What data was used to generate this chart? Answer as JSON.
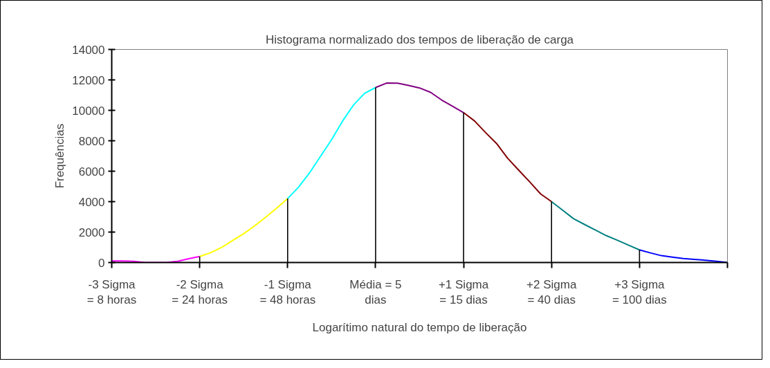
{
  "chart_data": {
    "type": "line",
    "title": "Histograma normalizado dos tempos de liberação de carga",
    "xlabel": "Logarítimo natural do tempo de liberação",
    "ylabel": "Frequências",
    "categories": [
      "-3 Sigma\n= 8 horas",
      null,
      null,
      null,
      null,
      null,
      null,
      null,
      "-2 Sigma\n= 24 horas",
      null,
      null,
      null,
      null,
      null,
      null,
      null,
      "-1 Sigma\n= 48 horas",
      null,
      null,
      null,
      null,
      null,
      null,
      null,
      "Média = 5\ndias",
      null,
      null,
      null,
      null,
      null,
      null,
      null,
      "+1 Sigma\n= 15 dias",
      null,
      null,
      null,
      null,
      null,
      null,
      null,
      "+2 Sigma\n= 40 dias",
      null,
      null,
      null,
      null,
      null,
      null,
      null,
      "+3 Sigma\n= 100 dias",
      null,
      null,
      null,
      null,
      null,
      null,
      null,
      null
    ],
    "ylim": [
      0,
      14000
    ],
    "yticks": [
      0,
      2000,
      4000,
      6000,
      8000,
      10000,
      12000,
      14000
    ],
    "series": [
      {
        "color": "#ff00ff",
        "values": [
          100,
          100,
          80,
          0,
          0,
          0,
          80,
          250,
          400,
          null,
          null,
          null,
          null,
          null,
          null,
          null,
          null,
          null,
          null,
          null,
          null,
          null,
          null,
          null,
          null,
          null,
          null,
          null,
          null,
          null,
          null,
          null,
          null,
          null,
          null,
          null,
          null,
          null,
          null,
          null,
          null,
          null,
          null,
          null,
          null,
          null,
          null,
          null,
          null,
          null,
          null,
          null,
          null,
          null,
          null,
          null,
          null
        ]
      },
      {
        "color": "#ffff00",
        "values": [
          null,
          null,
          null,
          null,
          null,
          null,
          null,
          null,
          400,
          640,
          990,
          1450,
          1890,
          2410,
          2980,
          3570,
          4200,
          null,
          null,
          null,
          null,
          null,
          null,
          null,
          null,
          null,
          null,
          null,
          null,
          null,
          null,
          null,
          null,
          null,
          null,
          null,
          null,
          null,
          null,
          null,
          null,
          null,
          null,
          null,
          null,
          null,
          null,
          null,
          null,
          null,
          null,
          null,
          null,
          null,
          null,
          null,
          null
        ]
      },
      {
        "color": "#00ffff",
        "values": [
          null,
          null,
          null,
          null,
          null,
          null,
          null,
          null,
          null,
          null,
          null,
          null,
          null,
          null,
          null,
          null,
          4200,
          4960,
          5900,
          6990,
          8080,
          9300,
          10360,
          11120,
          11500,
          null,
          null,
          null,
          null,
          null,
          null,
          null,
          null,
          null,
          null,
          null,
          null,
          null,
          null,
          null,
          null,
          null,
          null,
          null,
          null,
          null,
          null,
          null,
          null,
          null,
          null,
          null,
          null,
          null,
          null,
          null,
          null
        ]
      },
      {
        "color": "#800080",
        "values": [
          null,
          null,
          null,
          null,
          null,
          null,
          null,
          null,
          null,
          null,
          null,
          null,
          null,
          null,
          null,
          null,
          null,
          null,
          null,
          null,
          null,
          null,
          null,
          null,
          11500,
          11790,
          11780,
          11640,
          11470,
          11180,
          10680,
          10270,
          9850,
          null,
          null,
          null,
          null,
          null,
          null,
          null,
          null,
          null,
          null,
          null,
          null,
          null,
          null,
          null,
          null,
          null,
          null,
          null,
          null,
          null,
          null,
          null,
          null
        ]
      },
      {
        "color": "#800000",
        "values": [
          null,
          null,
          null,
          null,
          null,
          null,
          null,
          null,
          null,
          null,
          null,
          null,
          null,
          null,
          null,
          null,
          null,
          null,
          null,
          null,
          null,
          null,
          null,
          null,
          null,
          null,
          null,
          null,
          null,
          null,
          null,
          null,
          9850,
          9300,
          8540,
          7820,
          6860,
          6080,
          5310,
          4510,
          4000,
          null,
          null,
          null,
          null,
          null,
          null,
          null,
          null,
          null,
          null,
          null,
          null,
          null,
          null,
          null,
          null
        ]
      },
      {
        "color": "#008080",
        "values": [
          null,
          null,
          null,
          null,
          null,
          null,
          null,
          null,
          null,
          null,
          null,
          null,
          null,
          null,
          null,
          null,
          null,
          null,
          null,
          null,
          null,
          null,
          null,
          null,
          null,
          null,
          null,
          null,
          null,
          null,
          null,
          null,
          null,
          null,
          null,
          null,
          null,
          null,
          null,
          null,
          4000,
          3440,
          2880,
          2500,
          2130,
          1760,
          1460,
          1140,
          830,
          null,
          null,
          null,
          null,
          null,
          null,
          null,
          null
        ]
      },
      {
        "color": "#0000ff",
        "values": [
          null,
          null,
          null,
          null,
          null,
          null,
          null,
          null,
          null,
          null,
          null,
          null,
          null,
          null,
          null,
          null,
          null,
          null,
          null,
          null,
          null,
          null,
          null,
          null,
          null,
          null,
          null,
          null,
          null,
          null,
          null,
          null,
          null,
          null,
          null,
          null,
          null,
          null,
          null,
          null,
          null,
          null,
          null,
          null,
          null,
          null,
          null,
          null,
          830,
          630,
          450,
          350,
          260,
          200,
          150,
          80,
          0
        ]
      },
      {
        "type": "bar",
        "color": "#000000",
        "values": [
          null,
          null,
          null,
          null,
          null,
          null,
          null,
          null,
          400,
          null,
          null,
          null,
          null,
          null,
          null,
          null,
          4200,
          null,
          null,
          null,
          null,
          null,
          null,
          null,
          11500,
          null,
          null,
          null,
          null,
          null,
          null,
          null,
          9850,
          null,
          null,
          null,
          null,
          null,
          null,
          null,
          4000,
          null,
          null,
          null,
          null,
          null,
          null,
          null,
          830,
          null,
          null,
          null,
          null,
          null,
          null,
          null,
          null
        ]
      }
    ]
  }
}
